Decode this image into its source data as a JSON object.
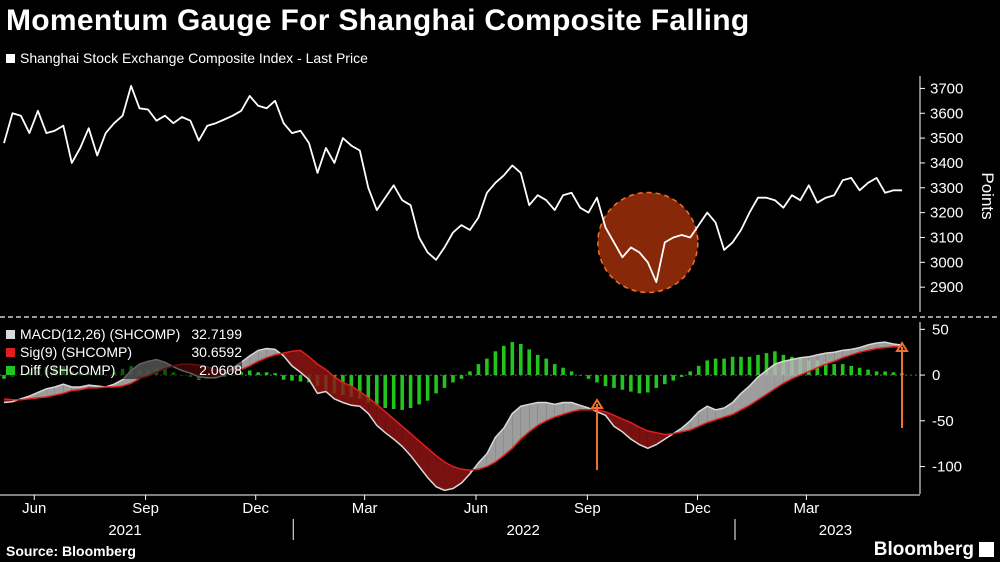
{
  "title": "Momentum Gauge For Shanghai Composite Falling",
  "source": "Source: Bloomberg",
  "brand": "Bloomberg",
  "colors": {
    "background": "#000000",
    "price": "#ffffff",
    "macd": "#d9d9d9",
    "signal": "#e01e1e",
    "diff": "#22c41e",
    "highlight": "#c0390b",
    "arrow": "#f07030",
    "axis": "#ffffff",
    "grid": "#666666"
  },
  "chart_data": [
    {
      "type": "line",
      "legend": "Shanghai Stock Exchange Composite Index - Last Price",
      "ylabel": "Points",
      "ylim": [
        2800,
        3750
      ],
      "yticks": [
        2900,
        3000,
        3100,
        3200,
        3300,
        3400,
        3500,
        3600,
        3700
      ],
      "x": [
        "2021-05-07",
        "2021-05-14",
        "2021-05-21",
        "2021-05-28",
        "2021-06-04",
        "2021-06-11",
        "2021-06-18",
        "2021-06-25",
        "2021-07-02",
        "2021-07-09",
        "2021-07-16",
        "2021-07-23",
        "2021-07-30",
        "2021-08-06",
        "2021-08-13",
        "2021-08-20",
        "2021-08-27",
        "2021-09-03",
        "2021-09-10",
        "2021-09-17",
        "2021-09-24",
        "2021-10-01",
        "2021-10-08",
        "2021-10-15",
        "2021-10-22",
        "2021-10-29",
        "2021-11-05",
        "2021-11-12",
        "2021-11-19",
        "2021-11-26",
        "2021-12-03",
        "2021-12-10",
        "2021-12-17",
        "2021-12-24",
        "2021-12-31",
        "2022-01-07",
        "2022-01-14",
        "2022-01-21",
        "2022-01-28",
        "2022-02-04",
        "2022-02-11",
        "2022-02-18",
        "2022-02-25",
        "2022-03-04",
        "2022-03-11",
        "2022-03-18",
        "2022-03-25",
        "2022-04-01",
        "2022-04-08",
        "2022-04-15",
        "2022-04-22",
        "2022-04-29",
        "2022-05-06",
        "2022-05-13",
        "2022-05-20",
        "2022-05-27",
        "2022-06-03",
        "2022-06-10",
        "2022-06-17",
        "2022-06-24",
        "2022-07-01",
        "2022-07-08",
        "2022-07-15",
        "2022-07-22",
        "2022-07-29",
        "2022-08-05",
        "2022-08-12",
        "2022-08-19",
        "2022-08-26",
        "2022-09-02",
        "2022-09-09",
        "2022-09-16",
        "2022-09-23",
        "2022-09-30",
        "2022-10-07",
        "2022-10-14",
        "2022-10-21",
        "2022-10-28",
        "2022-11-04",
        "2022-11-11",
        "2022-11-18",
        "2022-11-25",
        "2022-12-02",
        "2022-12-09",
        "2022-12-16",
        "2022-12-23",
        "2022-12-30",
        "2023-01-06",
        "2023-01-13",
        "2023-01-20",
        "2023-01-27",
        "2023-02-03",
        "2023-02-10",
        "2023-02-17",
        "2023-02-24",
        "2023-03-03",
        "2023-03-10",
        "2023-03-17",
        "2023-03-24",
        "2023-03-31",
        "2023-04-07",
        "2023-04-14",
        "2023-04-21",
        "2023-04-28",
        "2023-05-05",
        "2023-05-12",
        "2023-05-19"
      ],
      "values": [
        3480,
        3600,
        3590,
        3520,
        3610,
        3520,
        3530,
        3550,
        3400,
        3460,
        3540,
        3430,
        3520,
        3560,
        3590,
        3710,
        3620,
        3615,
        3570,
        3590,
        3560,
        3585,
        3570,
        3490,
        3550,
        3560,
        3575,
        3590,
        3610,
        3670,
        3630,
        3620,
        3650,
        3560,
        3520,
        3530,
        3480,
        3360,
        3460,
        3400,
        3500,
        3470,
        3450,
        3300,
        3210,
        3260,
        3310,
        3250,
        3230,
        3100,
        3040,
        3010,
        3060,
        3120,
        3150,
        3130,
        3180,
        3280,
        3320,
        3350,
        3390,
        3360,
        3230,
        3270,
        3250,
        3210,
        3270,
        3280,
        3220,
        3200,
        3260,
        3140,
        3080,
        3020,
        3060,
        3040,
        3000,
        2920,
        3080,
        3100,
        3110,
        3100,
        3150,
        3200,
        3160,
        3050,
        3080,
        3130,
        3200,
        3260,
        3260,
        3250,
        3220,
        3270,
        3250,
        3310,
        3240,
        3260,
        3270,
        3330,
        3340,
        3290,
        3320,
        3340,
        3280,
        3290,
        3290
      ]
    },
    {
      "type": "line",
      "ylim": [
        -130,
        58
      ],
      "yticks": [
        -100,
        -50,
        0,
        50
      ],
      "series": [
        {
          "name": "MACD(12,26) (SHCOMP)",
          "last_value": "32.7199",
          "values": [
            -30,
            -29,
            -26,
            -23,
            -19,
            -15,
            -13,
            -10,
            -13,
            -13,
            -11,
            -12,
            -13,
            -10,
            -5,
            5,
            12,
            15,
            17,
            14,
            9,
            5,
            2,
            -2,
            -3,
            -3,
            0,
            8,
            14,
            21,
            27,
            29,
            28,
            21,
            10,
            3,
            -5,
            -20,
            -18,
            -26,
            -30,
            -33,
            -34,
            -42,
            -55,
            -63,
            -70,
            -78,
            -88,
            -100,
            -112,
            -122,
            -126,
            -124,
            -118,
            -108,
            -96,
            -86,
            -68,
            -58,
            -42,
            -34,
            -32,
            -30,
            -30,
            -32,
            -30,
            -30,
            -33,
            -36,
            -40,
            -44,
            -56,
            -62,
            -70,
            -76,
            -80,
            -76,
            -70,
            -64,
            -58,
            -50,
            -40,
            -34,
            -38,
            -36,
            -30,
            -20,
            -12,
            -2,
            5,
            12,
            15,
            17,
            19,
            20,
            22,
            24,
            25,
            27,
            28,
            30,
            33,
            35,
            36,
            34,
            32.7199
          ]
        },
        {
          "name": "Sig(9) (SHCOMP)",
          "last_value": "30.6592",
          "values": [
            -26,
            -27,
            -27,
            -26,
            -25,
            -24,
            -22,
            -20,
            -17,
            -16,
            -14,
            -14,
            -13,
            -13,
            -12,
            -9,
            -4,
            -1,
            3,
            7,
            10,
            12,
            12,
            11,
            9,
            6,
            4,
            4,
            6,
            10,
            15,
            19,
            22,
            24,
            26,
            27,
            20,
            12,
            6,
            -2,
            -8,
            -12,
            -18,
            -25,
            -32,
            -40,
            -48,
            -56,
            -64,
            -72,
            -80,
            -88,
            -95,
            -100,
            -103,
            -104,
            -103,
            -100,
            -95,
            -88,
            -80,
            -70,
            -62,
            -55,
            -50,
            -46,
            -43,
            -40,
            -38,
            -38,
            -38,
            -40,
            -44,
            -48,
            -52,
            -57,
            -61,
            -63,
            -65,
            -64,
            -62,
            -60,
            -56,
            -52,
            -49,
            -46,
            -43,
            -38,
            -33,
            -27,
            -21,
            -15,
            -9,
            -4,
            0,
            4,
            8,
            12,
            15,
            19,
            22,
            25,
            27,
            29,
            30,
            31,
            30.6592
          ]
        },
        {
          "name": "Diff (SHCOMP)",
          "last_value": "2.0608",
          "values": [
            -4,
            -2,
            1,
            3,
            6,
            9,
            9,
            10,
            4,
            3,
            3,
            2,
            0,
            3,
            7,
            10,
            6,
            6,
            8,
            8,
            3,
            0,
            -2,
            -5,
            -4,
            -3,
            -2,
            0,
            3,
            5,
            3,
            3,
            2,
            -5,
            -6,
            -7,
            -8,
            -12,
            -16,
            -20,
            -22,
            -24,
            -26,
            -30,
            -34,
            -36,
            -37,
            -38,
            -36,
            -32,
            -28,
            -20,
            -14,
            -8,
            -4,
            4,
            12,
            18,
            26,
            32,
            36,
            34,
            28,
            22,
            18,
            12,
            8,
            4,
            0,
            -4,
            -8,
            -12,
            -14,
            -16,
            -18,
            -20,
            -19,
            -14,
            -10,
            -6,
            -2,
            4,
            10,
            16,
            18,
            18,
            20,
            20,
            20,
            22,
            24,
            26,
            22,
            20,
            18,
            16,
            16,
            14,
            12,
            12,
            10,
            8,
            6,
            4,
            4,
            3,
            2.0608
          ]
        }
      ]
    }
  ],
  "xaxis": {
    "months": [
      {
        "label": "Jun",
        "date": "2021-06-01"
      },
      {
        "label": "Sep",
        "date": "2021-09-01"
      },
      {
        "label": "Dec",
        "date": "2021-12-01"
      },
      {
        "label": "Mar",
        "date": "2022-03-01"
      },
      {
        "label": "Jun",
        "date": "2022-06-01"
      },
      {
        "label": "Sep",
        "date": "2022-09-01"
      },
      {
        "label": "Dec",
        "date": "2022-12-01"
      },
      {
        "label": "Mar",
        "date": "2023-03-01"
      }
    ],
    "years": [
      {
        "label": "2021",
        "date": "2021-08-15"
      },
      {
        "label": "2022",
        "date": "2022-07-10"
      },
      {
        "label": "2023",
        "date": "2023-03-25"
      }
    ],
    "year_breaks": [
      "2022-01-01",
      "2023-01-01"
    ]
  },
  "annotations": {
    "highlight_circle": {
      "from": "2022-09-16",
      "to": "2022-11-25",
      "center_value": 3100
    },
    "arrows": [
      {
        "date": "2022-09-09",
        "direction": "up"
      },
      {
        "date": "2023-05-19",
        "direction": "up"
      }
    ]
  }
}
